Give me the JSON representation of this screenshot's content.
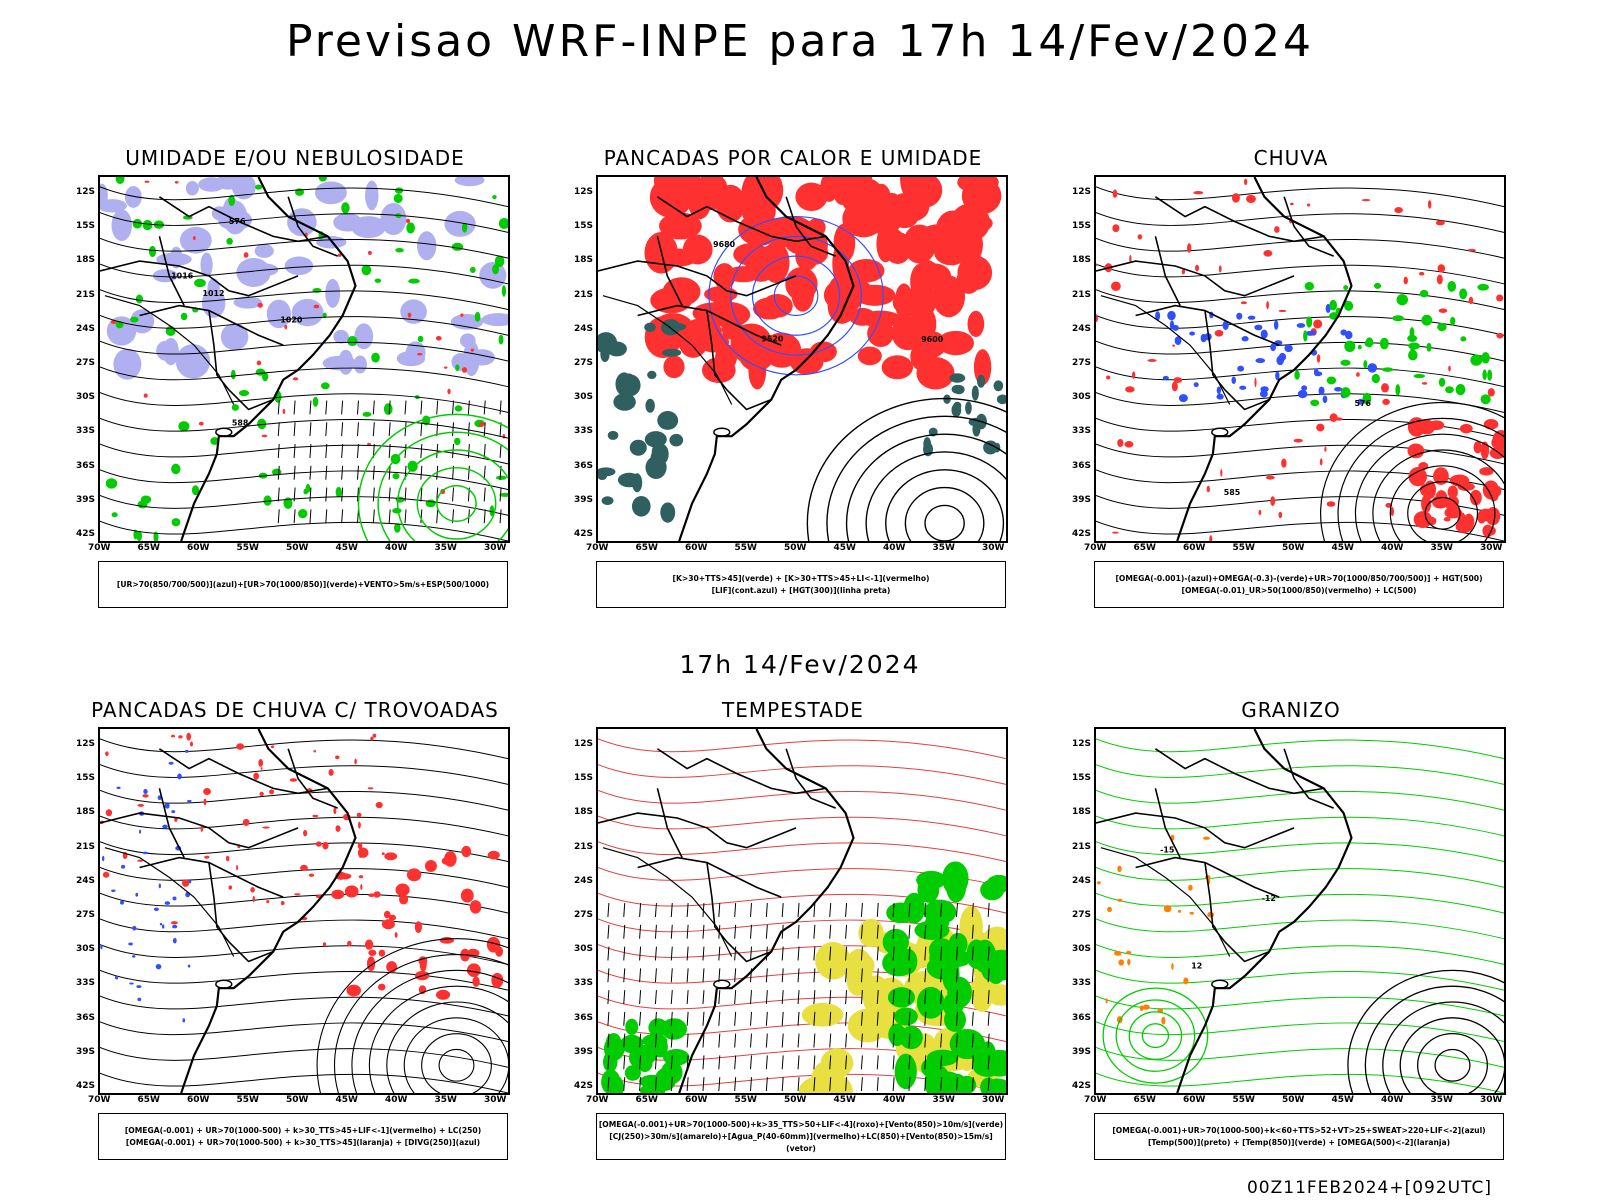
{
  "title": "Previsao WRF-INPE  para 17h 14/Fev/2024",
  "mid_title": "17h 14/Fev/2024",
  "footer": "00Z11FEB2024+[092UTC]",
  "lat_labels": [
    "12S",
    "15S",
    "18S",
    "21S",
    "24S",
    "27S",
    "30S",
    "33S",
    "36S",
    "39S",
    "42S"
  ],
  "lon_labels": [
    "70W",
    "65W",
    "60W",
    "55W",
    "50W",
    "45W",
    "40W",
    "35W",
    "30W"
  ],
  "colors": {
    "blue_fill": "#b0b0f0",
    "green": "#00cc00",
    "red": "#ff3030",
    "blue": "#3050ff",
    "yellow": "#e8e040",
    "teal": "#2f5f5f",
    "orange": "#ff8000"
  },
  "panels": [
    {
      "title": "UMIDADE E/OU NEBULOSIDADE",
      "legend": [
        "[UR>70(850/700/500)](azul)+[UR>70(1000/850)](verde)+VENTO>5m/s+ESP(500/1000)"
      ],
      "labels": [
        "1012",
        "1016",
        "1020",
        "576",
        "588"
      ]
    },
    {
      "title": "PANCADAS POR CALOR E UMIDADE",
      "legend": [
        "[K>30+TTS>45](verde) + [K>30+TTS>45+LI<-1](vermelho)",
        "[LIF](cont.azul) + [HGT(300)](linha preta)"
      ],
      "labels": [
        "9680",
        "9600",
        "9520"
      ]
    },
    {
      "title": "CHUVA",
      "legend": [
        "[OMEGA(-0.001)-(azul)+OMEGA(-0.3)-(verde)+UR>70(1000/850/700/500)] + HGT(500)",
        "[OMEGA(-0.01)_UR>50(1000/850)(vermelho) + LC(500)"
      ],
      "labels": [
        "585",
        "576"
      ]
    },
    {
      "title": "PANCADAS DE CHUVA C/ TROVOADAS",
      "legend": [
        "[OMEGA(-0.001) + UR>70(1000-500) + k>30_TTS>45+LIF<-1](vermelho) + LC(250)",
        "[OMEGA(-0.001) + UR>70(1000-500) + k>30_TTS>45](laranja) + [DIVG(250)](azul)"
      ],
      "labels": []
    },
    {
      "title": "TEMPESTADE",
      "legend": [
        "[OMEGA(-0.001)+UR>70(1000-500)+k>35_TTS>50+LIF<-4](roxo)+[Vento(850)>10m/s](verde)",
        "[CJ(250)>30m/s](amarelo)+[Agua_P(40-60mm)](vermelho)+LC(850)+[Vento(850)>15m/s](vetor)"
      ],
      "labels": []
    },
    {
      "title": "GRANIZO",
      "legend": [
        "[OMEGA(-0.001)+UR>70(1000-500)+k<60+TTS>52+VT>25+SWEAT>220+LIF<-2](azul)",
        "[Temp(500)](preto) + [Temp(850)](verde) + [OMEGA(500)<-2](laranja)"
      ],
      "labels": [
        "-12",
        "-15",
        "12"
      ]
    }
  ]
}
